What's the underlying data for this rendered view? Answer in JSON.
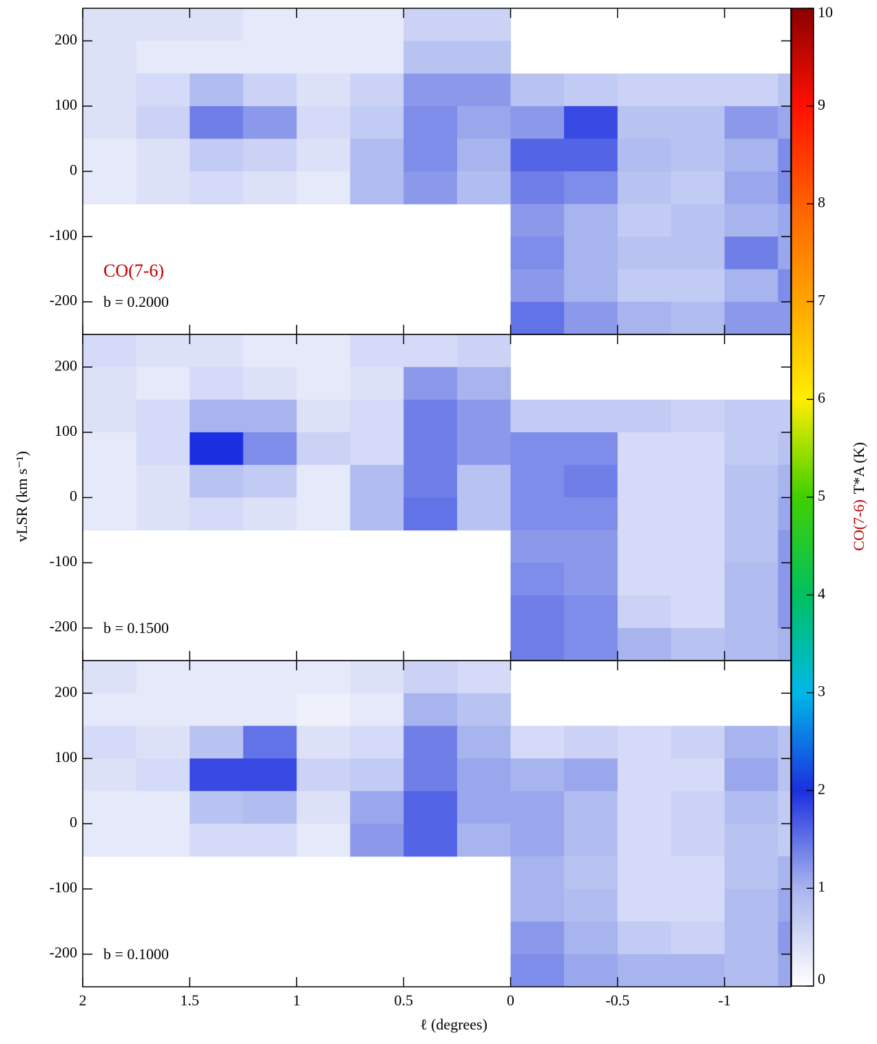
{
  "chart_data": {
    "type": "heatmap",
    "title": "CO(7-6)",
    "x_label": "ℓ (degrees)",
    "y_label": "vLSR (km s⁻¹)",
    "colorbar_label_species": "CO(7-6)",
    "colorbar_label_quantity": "T*A (K)",
    "xlim": [
      2,
      -1.31
    ],
    "ylim": [
      -250,
      250
    ],
    "xticks": [
      2,
      1.5,
      1,
      0.5,
      0,
      -0.5,
      -1
    ],
    "yticks": [
      -200,
      -100,
      0,
      100,
      200
    ],
    "clim": [
      0,
      10
    ],
    "cticks": [
      0,
      1,
      2,
      3,
      4,
      5,
      6,
      7,
      8,
      9,
      10
    ],
    "colormap": [
      {
        "value": 0,
        "color": "#ffffff"
      },
      {
        "value": 1,
        "color": "#a8b4ee"
      },
      {
        "value": 2,
        "color": "#1c2fe0"
      },
      {
        "value": 3,
        "color": "#00b8e8"
      },
      {
        "value": 4,
        "color": "#00c060"
      },
      {
        "value": 5,
        "color": "#40d000"
      },
      {
        "value": 6,
        "color": "#ffee00"
      },
      {
        "value": 7,
        "color": "#ffa500"
      },
      {
        "value": 8,
        "color": "#ff6000"
      },
      {
        "value": 9,
        "color": "#ff1000"
      },
      {
        "value": 10,
        "color": "#8b0000"
      }
    ],
    "x_edges": [
      2,
      1.75,
      1.5,
      1.25,
      1,
      0.75,
      0.5,
      0.25,
      0,
      -0.25,
      -0.5,
      -0.75,
      -1,
      -1.25,
      -1.31
    ],
    "y_edges": [
      250,
      200,
      150,
      100,
      50,
      0,
      -50,
      -100,
      -150,
      -200,
      -250
    ],
    "panels": [
      {
        "label": "b = 0.2000",
        "values": [
          [
            0.4,
            0.4,
            0.4,
            0.3,
            0.3,
            0.3,
            0.6,
            0.6,
            null,
            null,
            null,
            null,
            null,
            null
          ],
          [
            0.4,
            0.3,
            0.3,
            0.3,
            0.3,
            0.3,
            0.8,
            0.8,
            null,
            null,
            null,
            null,
            null,
            null
          ],
          [
            0.4,
            0.5,
            0.9,
            0.6,
            0.4,
            0.6,
            1.2,
            1.2,
            0.8,
            0.7,
            0.6,
            0.6,
            0.6,
            0.8
          ],
          [
            0.4,
            0.6,
            1.4,
            1.2,
            0.5,
            0.7,
            1.3,
            1.1,
            1.2,
            1.8,
            0.8,
            0.8,
            1.2,
            1.1
          ],
          [
            0.3,
            0.4,
            0.7,
            0.6,
            0.4,
            0.9,
            1.3,
            1.0,
            1.6,
            1.6,
            0.9,
            0.8,
            1.0,
            1.3
          ],
          [
            0.3,
            0.4,
            0.5,
            0.4,
            0.3,
            0.9,
            1.2,
            0.9,
            1.4,
            1.3,
            0.8,
            0.7,
            1.1,
            1.3
          ],
          [
            null,
            null,
            null,
            null,
            null,
            null,
            null,
            null,
            1.2,
            1.0,
            0.7,
            0.8,
            1.0,
            1.1
          ],
          [
            null,
            null,
            null,
            null,
            null,
            null,
            null,
            null,
            1.3,
            1.0,
            0.8,
            0.8,
            1.4,
            1.1
          ],
          [
            null,
            null,
            null,
            null,
            null,
            null,
            null,
            null,
            1.2,
            1.0,
            0.7,
            0.7,
            1.0,
            1.3
          ],
          [
            null,
            null,
            null,
            null,
            null,
            null,
            null,
            null,
            1.5,
            1.2,
            1.0,
            0.9,
            1.2,
            1.2
          ]
        ]
      },
      {
        "label": "b = 0.1500",
        "values": [
          [
            0.5,
            0.4,
            0.4,
            0.3,
            0.3,
            0.5,
            0.5,
            0.6,
            null,
            null,
            null,
            null,
            null,
            null
          ],
          [
            0.4,
            0.3,
            0.5,
            0.4,
            0.3,
            0.4,
            1.2,
            1.0,
            null,
            null,
            null,
            null,
            null,
            null
          ],
          [
            0.4,
            0.5,
            1.0,
            1.0,
            0.4,
            0.5,
            1.4,
            1.2,
            0.7,
            0.7,
            0.7,
            0.6,
            0.7,
            0.7
          ],
          [
            0.3,
            0.5,
            2.0,
            1.3,
            0.6,
            0.5,
            1.4,
            1.2,
            1.3,
            1.3,
            0.5,
            0.5,
            0.7,
            0.8
          ],
          [
            0.3,
            0.4,
            0.8,
            0.7,
            0.3,
            0.9,
            1.4,
            0.8,
            1.3,
            1.4,
            0.5,
            0.5,
            0.8,
            1.0
          ],
          [
            0.3,
            0.4,
            0.5,
            0.4,
            0.3,
            0.9,
            1.5,
            0.8,
            1.3,
            1.3,
            0.5,
            0.5,
            0.8,
            1.1
          ],
          [
            null,
            null,
            null,
            null,
            null,
            null,
            null,
            null,
            1.2,
            1.2,
            0.5,
            0.5,
            0.8,
            1.2
          ],
          [
            null,
            null,
            null,
            null,
            null,
            null,
            null,
            null,
            1.3,
            1.2,
            0.5,
            0.5,
            0.9,
            1.2
          ],
          [
            null,
            null,
            null,
            null,
            null,
            null,
            null,
            null,
            1.4,
            1.3,
            0.6,
            0.5,
            0.9,
            1.2
          ],
          [
            null,
            null,
            null,
            null,
            null,
            null,
            null,
            null,
            1.4,
            1.3,
            1.0,
            0.8,
            0.9,
            1.0
          ]
        ]
      },
      {
        "label": "b = 0.1000",
        "values": [
          [
            0.4,
            0.3,
            0.3,
            0.3,
            0.3,
            0.4,
            0.6,
            0.5,
            null,
            null,
            null,
            null,
            null,
            null
          ],
          [
            0.3,
            0.3,
            0.3,
            0.3,
            0.2,
            0.3,
            1.0,
            0.8,
            null,
            null,
            null,
            null,
            null,
            null
          ],
          [
            0.5,
            0.4,
            0.8,
            1.5,
            0.4,
            0.5,
            1.4,
            1.0,
            0.5,
            0.6,
            0.5,
            0.6,
            1.0,
            0.8
          ],
          [
            0.4,
            0.5,
            1.8,
            1.8,
            0.6,
            0.7,
            1.4,
            1.1,
            1.0,
            1.1,
            0.5,
            0.5,
            1.1,
            0.8
          ],
          [
            0.3,
            0.3,
            0.8,
            0.9,
            0.4,
            1.1,
            1.6,
            1.1,
            1.1,
            0.9,
            0.5,
            0.6,
            0.9,
            0.7
          ],
          [
            0.3,
            0.3,
            0.5,
            0.5,
            0.3,
            1.2,
            1.6,
            1.0,
            1.1,
            0.9,
            0.5,
            0.6,
            0.8,
            0.7
          ],
          [
            null,
            null,
            null,
            null,
            null,
            null,
            null,
            null,
            1.0,
            0.8,
            0.5,
            0.5,
            0.8,
            1.0
          ],
          [
            null,
            null,
            null,
            null,
            null,
            null,
            null,
            null,
            1.0,
            0.9,
            0.5,
            0.5,
            0.9,
            1.1
          ],
          [
            null,
            null,
            null,
            null,
            null,
            null,
            null,
            null,
            1.2,
            1.0,
            0.7,
            0.6,
            0.9,
            1.2
          ],
          [
            null,
            null,
            null,
            null,
            null,
            null,
            null,
            null,
            1.3,
            1.1,
            1.0,
            1.0,
            0.9,
            1.1
          ]
        ]
      }
    ]
  }
}
